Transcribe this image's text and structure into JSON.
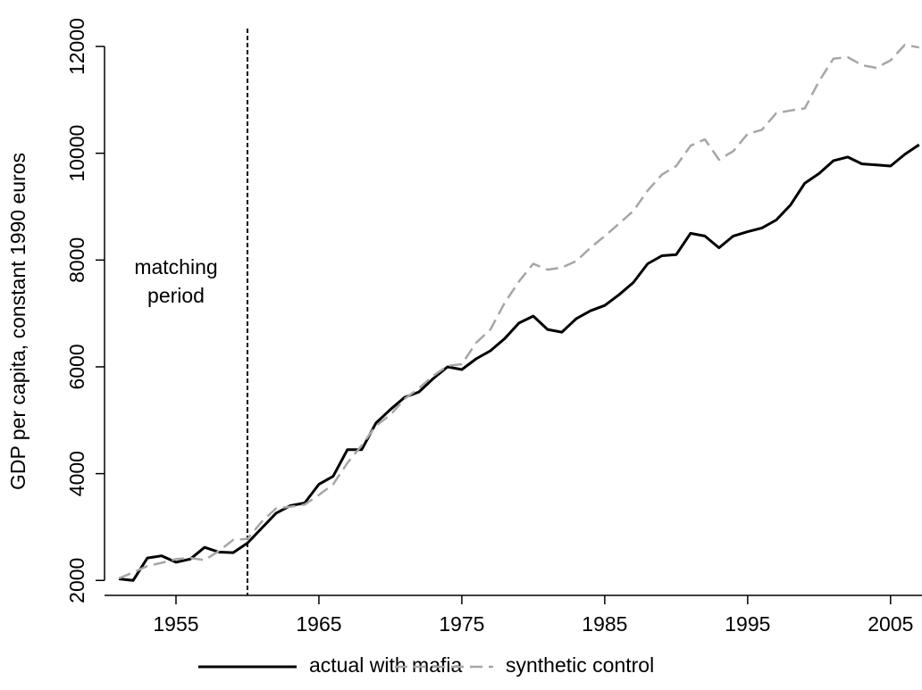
{
  "chart_data": {
    "type": "line",
    "ylabel": "GDP per capita, constant 1990 euros",
    "x": [
      1951,
      1952,
      1953,
      1954,
      1955,
      1956,
      1957,
      1958,
      1959,
      1960,
      1961,
      1962,
      1963,
      1964,
      1965,
      1966,
      1967,
      1968,
      1969,
      1970,
      1971,
      1972,
      1973,
      1974,
      1975,
      1976,
      1977,
      1978,
      1979,
      1980,
      1981,
      1982,
      1983,
      1984,
      1985,
      1986,
      1987,
      1988,
      1989,
      1990,
      1991,
      1992,
      1993,
      1994,
      1995,
      1996,
      1997,
      1998,
      1999,
      2000,
      2001,
      2002,
      2003,
      2004,
      2005,
      2006,
      2007
    ],
    "series": [
      {
        "name": "actual with mafia",
        "color": "#000000",
        "dash": false,
        "values": [
          2030,
          2000,
          2420,
          2460,
          2340,
          2400,
          2620,
          2530,
          2520,
          2700,
          2980,
          3260,
          3400,
          3450,
          3800,
          3950,
          4450,
          4450,
          4950,
          5200,
          5430,
          5530,
          5780,
          6000,
          5950,
          6150,
          6300,
          6530,
          6820,
          6950,
          6700,
          6650,
          6900,
          7050,
          7150,
          7350,
          7580,
          7930,
          8080,
          8100,
          8500,
          8450,
          8230,
          8450,
          8530,
          8600,
          8750,
          9030,
          9440,
          9620,
          9860,
          9930,
          9800,
          9780,
          9760,
          9980,
          10160
        ]
      },
      {
        "name": "synthetic control",
        "color": "#a6a6a6",
        "dash": true,
        "values": [
          2040,
          2150,
          2270,
          2330,
          2400,
          2420,
          2380,
          2550,
          2760,
          2780,
          3100,
          3350,
          3380,
          3420,
          3600,
          3800,
          4200,
          4530,
          4900,
          5100,
          5400,
          5600,
          5830,
          6020,
          6050,
          6450,
          6700,
          7200,
          7600,
          7930,
          7820,
          7860,
          7980,
          8230,
          8450,
          8680,
          8920,
          9300,
          9600,
          9760,
          10140,
          10260,
          9880,
          10040,
          10360,
          10440,
          10750,
          10800,
          10840,
          11350,
          11770,
          11800,
          11650,
          11600,
          11740,
          12030,
          11980
        ]
      }
    ],
    "xlim": [
      1950,
      2007.2
    ],
    "xticks": [
      1955,
      1965,
      1975,
      1985,
      1995,
      2005
    ],
    "ylim": [
      1720,
      12870
    ],
    "yticks": [
      2000,
      4000,
      6000,
      8000,
      10000,
      12000
    ],
    "vline": 1960,
    "annotation": [
      "matching",
      "period"
    ]
  }
}
